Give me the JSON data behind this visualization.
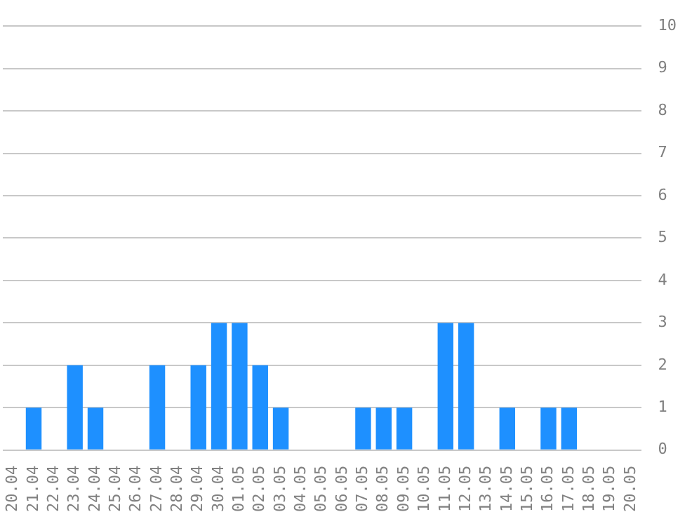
{
  "chart_data": {
    "type": "bar",
    "categories": [
      "20.04",
      "21.04",
      "22.04",
      "23.04",
      "24.04",
      "25.04",
      "26.04",
      "27.04",
      "28.04",
      "29.04",
      "30.04",
      "01.05",
      "02.05",
      "03.05",
      "04.05",
      "05.05",
      "06.05",
      "07.05",
      "08.05",
      "09.05",
      "10.05",
      "11.05",
      "12.05",
      "13.05",
      "14.05",
      "15.05",
      "16.05",
      "17.05",
      "18.05",
      "19.05",
      "20.05"
    ],
    "values": [
      0,
      1,
      0,
      2,
      1,
      0,
      0,
      2,
      0,
      2,
      3,
      3,
      2,
      1,
      0,
      0,
      0,
      1,
      1,
      1,
      0,
      3,
      3,
      0,
      1,
      0,
      1,
      1,
      0,
      0,
      0
    ],
    "color": "#1e90ff",
    "ylim": [
      0,
      10
    ],
    "yticks": [
      0,
      1,
      2,
      3,
      4,
      5,
      6,
      7,
      8,
      9,
      10
    ],
    "grid": "y",
    "legend": false
  }
}
